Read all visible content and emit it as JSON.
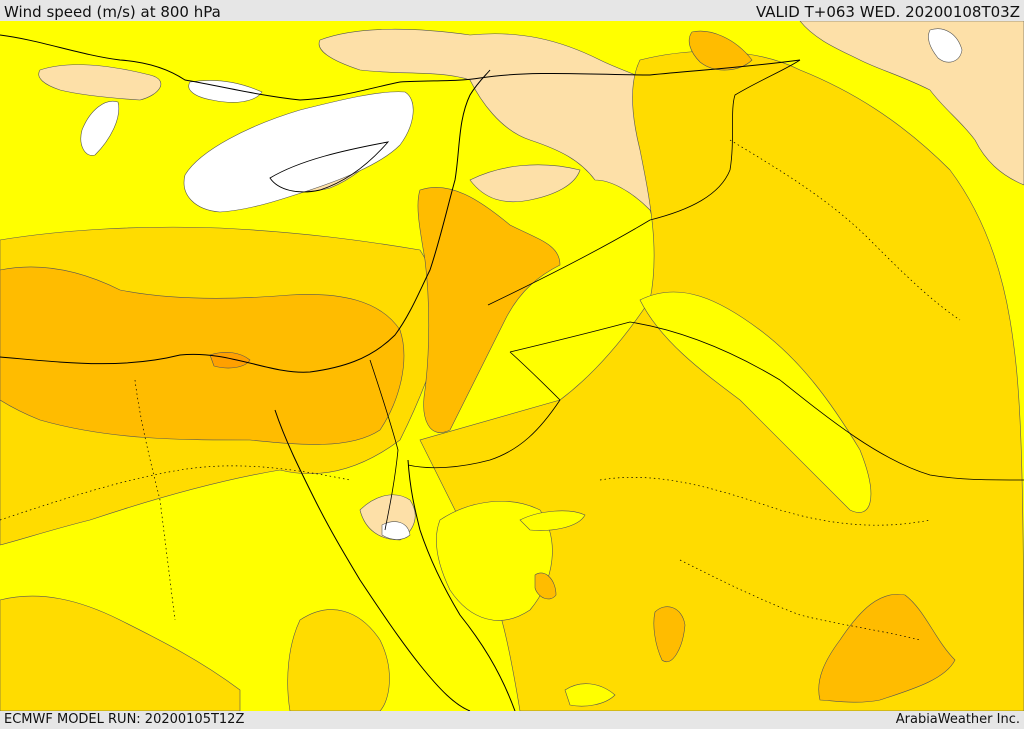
{
  "header": {
    "title": "Wind speed (m/s) at 800 hPa",
    "valid": "VALID T+063 WED. 20200108T03Z"
  },
  "footer": {
    "model_run": "ECMWF MODEL RUN: 20200105T12Z",
    "credit": "ArabiaWeather Inc."
  },
  "colors": {
    "calm_white": "#ffffff",
    "light_tan": "#fde0a8",
    "yellow": "#ffff00",
    "gold": "#ffdc00",
    "orange": "#ffbc00",
    "deep_orange": "#ffa000",
    "background": "#e6e6e6"
  }
}
